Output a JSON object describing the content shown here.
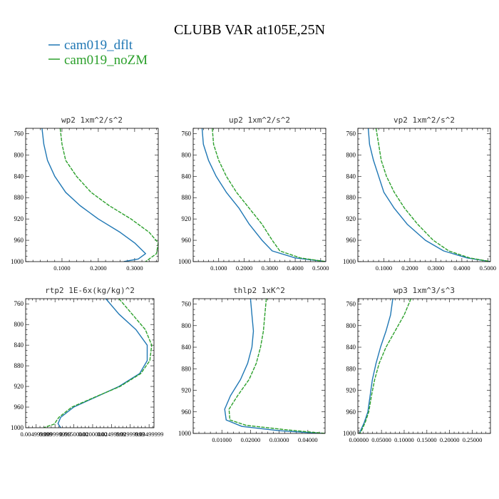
{
  "figure": {
    "title": "CLUBB VAR at105E,25N"
  },
  "legend": [
    {
      "label": "cam019_dflt",
      "color": "#1f77b4"
    },
    {
      "label": "cam019_noZM",
      "color": "#2ca02c"
    }
  ],
  "chart_data": [
    {
      "type": "line",
      "title": "wp2   1xm^2/s^2",
      "xlim": [
        0,
        0.365
      ],
      "ylim": [
        1000,
        750
      ],
      "xticks": [
        0.1,
        0.2,
        0.3
      ],
      "xtick_labels": [
        "0.1000",
        "0.2000",
        "0.3000"
      ],
      "yticks": [
        760,
        800,
        840,
        880,
        920,
        960,
        1000
      ],
      "series": [
        {
          "name": "cam019_dflt",
          "points": [
            [
              0.045,
              750
            ],
            [
              0.05,
              780
            ],
            [
              0.06,
              810
            ],
            [
              0.08,
              840
            ],
            [
              0.11,
              870
            ],
            [
              0.15,
              895
            ],
            [
              0.2,
              920
            ],
            [
              0.26,
              945
            ],
            [
              0.3,
              965
            ],
            [
              0.33,
              985
            ],
            [
              0.31,
              995
            ],
            [
              0.27,
              1000
            ]
          ]
        },
        {
          "name": "cam019_noZM",
          "points": [
            [
              0.095,
              750
            ],
            [
              0.1,
              780
            ],
            [
              0.11,
              810
            ],
            [
              0.14,
              840
            ],
            [
              0.18,
              870
            ],
            [
              0.23,
              895
            ],
            [
              0.29,
              920
            ],
            [
              0.34,
              945
            ],
            [
              0.365,
              965
            ],
            [
              0.36,
              985
            ],
            [
              0.33,
              1000
            ]
          ]
        }
      ]
    },
    {
      "type": "line",
      "title": "up2   1xm^2/s^2",
      "xlim": [
        0,
        0.52
      ],
      "ylim": [
        1000,
        750
      ],
      "xticks": [
        0.1,
        0.2,
        0.3,
        0.4,
        0.5
      ],
      "xtick_labels": [
        "0.1000",
        "0.2000",
        "0.3000",
        "0.4000",
        "0.5000"
      ],
      "yticks": [
        760,
        800,
        840,
        880,
        920,
        960,
        1000
      ],
      "series": [
        {
          "name": "cam019_dflt",
          "points": [
            [
              0.035,
              750
            ],
            [
              0.04,
              780
            ],
            [
              0.06,
              810
            ],
            [
              0.09,
              840
            ],
            [
              0.13,
              870
            ],
            [
              0.18,
              900
            ],
            [
              0.22,
              930
            ],
            [
              0.27,
              960
            ],
            [
              0.31,
              980
            ],
            [
              0.4,
              993
            ],
            [
              0.52,
              1000
            ]
          ]
        },
        {
          "name": "cam019_noZM",
          "points": [
            [
              0.075,
              750
            ],
            [
              0.08,
              780
            ],
            [
              0.1,
              810
            ],
            [
              0.13,
              840
            ],
            [
              0.17,
              870
            ],
            [
              0.22,
              900
            ],
            [
              0.27,
              930
            ],
            [
              0.31,
              960
            ],
            [
              0.34,
              980
            ],
            [
              0.42,
              993
            ],
            [
              0.52,
              1000
            ]
          ]
        }
      ]
    },
    {
      "type": "line",
      "title": "vp2   1xm^2/s^2",
      "xlim": [
        0,
        0.51
      ],
      "ylim": [
        1000,
        750
      ],
      "xticks": [
        0.1,
        0.2,
        0.3,
        0.4,
        0.5
      ],
      "xtick_labels": [
        "0.1000",
        "0.2000",
        "0.3000",
        "0.4000",
        "0.5000"
      ],
      "yticks": [
        760,
        800,
        840,
        880,
        920,
        960,
        1000
      ],
      "series": [
        {
          "name": "cam019_dflt",
          "points": [
            [
              0.04,
              750
            ],
            [
              0.045,
              780
            ],
            [
              0.06,
              810
            ],
            [
              0.08,
              840
            ],
            [
              0.1,
              870
            ],
            [
              0.14,
              900
            ],
            [
              0.19,
              930
            ],
            [
              0.26,
              960
            ],
            [
              0.33,
              980
            ],
            [
              0.42,
              993
            ],
            [
              0.51,
              1000
            ]
          ]
        },
        {
          "name": "cam019_noZM",
          "points": [
            [
              0.07,
              750
            ],
            [
              0.08,
              780
            ],
            [
              0.09,
              810
            ],
            [
              0.11,
              840
            ],
            [
              0.14,
              870
            ],
            [
              0.18,
              900
            ],
            [
              0.23,
              930
            ],
            [
              0.29,
              960
            ],
            [
              0.35,
              980
            ],
            [
              0.43,
              993
            ],
            [
              0.51,
              1000
            ]
          ]
        }
      ]
    },
    {
      "type": "line",
      "title": "rtp2   1E-6x(kg/kg)^2",
      "xlim": [
        0.0022,
        0.0363
      ],
      "ylim": [
        1000,
        750
      ],
      "xticks": [
        0.005,
        0.01,
        0.015,
        0.02,
        0.025,
        0.03,
        0.035
      ],
      "xtick_labels": [
        "0.004999999",
        "0.009999999",
        "0.01500000",
        "0.02000000",
        "0.02499999",
        "0.02999999",
        "0.03499999"
      ],
      "yticks": [
        760,
        800,
        840,
        880,
        920,
        960,
        1000
      ],
      "series": [
        {
          "name": "cam019_dflt",
          "points": [
            [
              0.0235,
              750
            ],
            [
              0.027,
              780
            ],
            [
              0.0315,
              810
            ],
            [
              0.0345,
              840
            ],
            [
              0.0345,
              870
            ],
            [
              0.0325,
              895
            ],
            [
              0.027,
              920
            ],
            [
              0.021,
              940
            ],
            [
              0.015,
              960
            ],
            [
              0.0115,
              980
            ],
            [
              0.0108,
              992
            ],
            [
              0.0115,
              1000
            ]
          ]
        },
        {
          "name": "cam019_noZM",
          "points": [
            [
              0.027,
              750
            ],
            [
              0.0305,
              780
            ],
            [
              0.034,
              810
            ],
            [
              0.0357,
              840
            ],
            [
              0.0352,
              870
            ],
            [
              0.0328,
              895
            ],
            [
              0.0273,
              920
            ],
            [
              0.0208,
              940
            ],
            [
              0.0145,
              960
            ],
            [
              0.011,
              980
            ],
            [
              0.0098,
              993
            ],
            [
              0.007,
              1000
            ]
          ]
        }
      ]
    },
    {
      "type": "line",
      "title": "thlp2   1xK^2",
      "xlim": [
        0,
        0.046
      ],
      "ylim": [
        1000,
        750
      ],
      "xticks": [
        0.01,
        0.02,
        0.03,
        0.04
      ],
      "xtick_labels": [
        "0.01000",
        "0.02000",
        "0.03000",
        "0.04000"
      ],
      "yticks": [
        760,
        800,
        840,
        880,
        920,
        960,
        1000
      ],
      "series": [
        {
          "name": "cam019_dflt",
          "points": [
            [
              0.02,
              750
            ],
            [
              0.0205,
              780
            ],
            [
              0.021,
              810
            ],
            [
              0.0205,
              840
            ],
            [
              0.019,
              870
            ],
            [
              0.0165,
              900
            ],
            [
              0.013,
              930
            ],
            [
              0.011,
              955
            ],
            [
              0.0115,
              975
            ],
            [
              0.017,
              987
            ],
            [
              0.03,
              995
            ],
            [
              0.045,
              1000
            ]
          ]
        },
        {
          "name": "cam019_noZM",
          "points": [
            [
              0.0255,
              750
            ],
            [
              0.025,
              780
            ],
            [
              0.0245,
              810
            ],
            [
              0.0235,
              840
            ],
            [
              0.022,
              870
            ],
            [
              0.0195,
              900
            ],
            [
              0.0155,
              930
            ],
            [
              0.0125,
              955
            ],
            [
              0.0128,
              975
            ],
            [
              0.0185,
              985
            ],
            [
              0.032,
              993
            ],
            [
              0.046,
              1000
            ]
          ]
        }
      ]
    },
    {
      "type": "line",
      "title": "wp3   1xm^3/s^3",
      "xlim": [
        -0.002,
        0.29
      ],
      "ylim": [
        1000,
        750
      ],
      "xticks": [
        0,
        0.05,
        0.1,
        0.15,
        0.2,
        0.25
      ],
      "xtick_labels": [
        "0.00000",
        "0.05000",
        "0.10000",
        "0.15000",
        "0.20000",
        "0.25000"
      ],
      "yticks": [
        760,
        800,
        840,
        880,
        920,
        960,
        1000
      ],
      "series": [
        {
          "name": "cam019_dflt",
          "points": [
            [
              0.075,
              750
            ],
            [
              0.07,
              780
            ],
            [
              0.06,
              810
            ],
            [
              0.048,
              840
            ],
            [
              0.038,
              870
            ],
            [
              0.03,
              900
            ],
            [
              0.025,
              930
            ],
            [
              0.02,
              960
            ],
            [
              0.012,
              980
            ],
            [
              0.004,
              995
            ],
            [
              0.002,
              1000
            ]
          ]
        },
        {
          "name": "cam019_noZM",
          "points": [
            [
              0.115,
              750
            ],
            [
              0.1,
              780
            ],
            [
              0.08,
              810
            ],
            [
              0.06,
              840
            ],
            [
              0.045,
              870
            ],
            [
              0.035,
              900
            ],
            [
              0.028,
              930
            ],
            [
              0.022,
              960
            ],
            [
              0.014,
              980
            ],
            [
              0.006,
              995
            ],
            [
              0.002,
              1000
            ]
          ]
        }
      ]
    }
  ]
}
